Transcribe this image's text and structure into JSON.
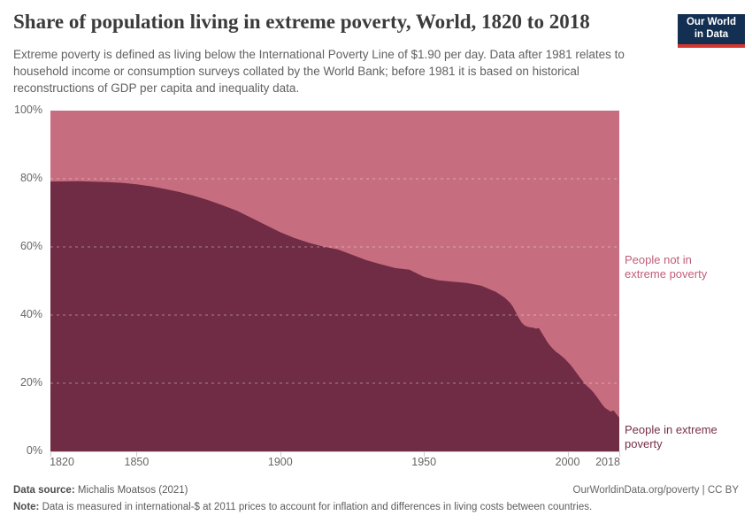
{
  "header": {
    "title": "Share of population living in extreme poverty, World, 1820 to 2018",
    "subtitle": "Extreme poverty is defined as living below the International Poverty Line of $1.90 per day. Data after 1981 relates to household income or consumption surveys collated by the World Bank; before 1981 it is based on historical reconstructions of GDP per capita and inequality data.",
    "logo": {
      "line1": "Our World",
      "line2": "in Data",
      "bg_color": "#132f52",
      "stripe_color": "#d5372e"
    }
  },
  "chart_data": {
    "type": "area",
    "stacked": true,
    "title": "Share of population living in extreme poverty, World, 1820 to 2018",
    "xlabel": "",
    "ylabel": "",
    "xlim": [
      1820,
      2018
    ],
    "ylim": [
      0,
      100
    ],
    "xticks": [
      1820,
      1850,
      1900,
      1950,
      2000,
      2018
    ],
    "xtick_labels": [
      "1820",
      "1850",
      "1900",
      "1950",
      "2000",
      "2018"
    ],
    "yticks": [
      0,
      20,
      40,
      60,
      80,
      100
    ],
    "ytick_labels": [
      "0%",
      "20%",
      "40%",
      "60%",
      "80%",
      "100%"
    ],
    "grid": {
      "horizontal": [
        20,
        40,
        60,
        80
      ],
      "style": "dashed",
      "color": "rgba(255,255,255,0.4)"
    },
    "legend_position": "labels-right-of-areas",
    "x": [
      1820,
      1830,
      1840,
      1845,
      1850,
      1855,
      1860,
      1865,
      1870,
      1875,
      1880,
      1885,
      1890,
      1895,
      1900,
      1905,
      1910,
      1915,
      1920,
      1925,
      1930,
      1935,
      1940,
      1945,
      1950,
      1955,
      1960,
      1965,
      1970,
      1975,
      1978,
      1980,
      1981,
      1982,
      1983,
      1984,
      1985,
      1986,
      1987,
      1988,
      1989,
      1990,
      1991,
      1992,
      1993,
      1994,
      1995,
      1996,
      1997,
      1998,
      1999,
      2000,
      2001,
      2002,
      2003,
      2004,
      2005,
      2006,
      2007,
      2008,
      2009,
      2010,
      2011,
      2012,
      2013,
      2014,
      2015,
      2016,
      2017,
      2018
    ],
    "series": [
      {
        "name": "People in extreme poverty",
        "color": "#702c44",
        "label_color": "#76304a",
        "values": [
          79.2,
          79.3,
          79.0,
          78.8,
          78.4,
          77.8,
          77.0,
          76.1,
          75.0,
          73.7,
          72.2,
          70.6,
          68.5,
          66.4,
          64.3,
          62.6,
          61.2,
          60.1,
          59.3,
          57.7,
          56.1,
          54.9,
          53.8,
          53.3,
          51.2,
          50.2,
          49.8,
          49.4,
          48.6,
          46.8,
          45.2,
          43.6,
          42.4,
          40.8,
          39.2,
          37.8,
          37.0,
          36.6,
          36.4,
          36.3,
          36.0,
          36.2,
          34.8,
          33.4,
          32.0,
          30.9,
          30.0,
          29.2,
          28.6,
          27.9,
          27.2,
          26.3,
          25.4,
          24.3,
          23.2,
          22.0,
          20.9,
          19.8,
          19.0,
          18.2,
          17.3,
          16.2,
          15.0,
          13.8,
          12.8,
          12.2,
          11.7,
          12.0,
          10.9,
          9.9
        ]
      },
      {
        "name": "People not in extreme poverty",
        "color": "#c76d80",
        "label_color": "#c05e78",
        "values": [
          20.8,
          20.7,
          21.0,
          21.2,
          21.6,
          22.2,
          23.0,
          23.9,
          25.0,
          26.3,
          27.8,
          29.4,
          31.5,
          33.6,
          35.7,
          37.4,
          38.8,
          39.9,
          40.7,
          42.3,
          43.9,
          45.1,
          46.2,
          46.7,
          48.8,
          49.8,
          50.2,
          50.6,
          51.4,
          53.2,
          54.8,
          56.4,
          57.6,
          59.2,
          60.8,
          62.2,
          63.0,
          63.4,
          63.6,
          63.7,
          64.0,
          63.8,
          65.2,
          66.6,
          68.0,
          69.1,
          70.0,
          70.8,
          71.4,
          72.1,
          72.8,
          73.7,
          74.6,
          75.7,
          76.8,
          78.0,
          79.1,
          80.2,
          81.0,
          81.8,
          82.7,
          83.8,
          85.0,
          86.2,
          87.2,
          87.8,
          88.3,
          88.0,
          89.1,
          90.1
        ]
      }
    ]
  },
  "footer": {
    "source_label": "Data source:",
    "source_value": "Michalis Moatsos (2021)",
    "credit": "OurWorldinData.org/poverty | CC BY",
    "note_label": "Note:",
    "note_value": "Data is measured in international-$ at 2011 prices to account for inflation and differences in living costs between countries."
  }
}
